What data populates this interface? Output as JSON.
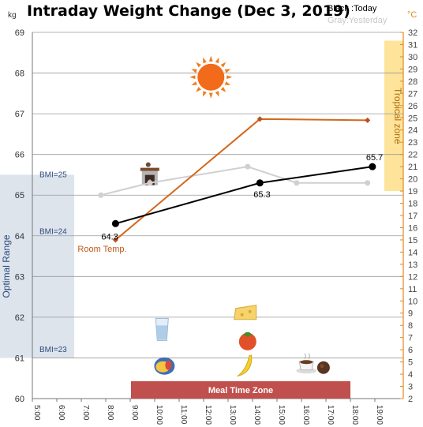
{
  "chart_data": {
    "type": "line",
    "title": "Intraday Weight Change (Dec 3, 2019)",
    "legend": {
      "today": "Black :Today",
      "yesterday": "Gray:Yesterday"
    },
    "y_left": {
      "unit": "kg",
      "range": [
        60,
        69
      ],
      "ticks": [
        60,
        61,
        62,
        63,
        64,
        65,
        66,
        67,
        68,
        69
      ]
    },
    "y_right": {
      "unit": "°C",
      "range": [
        2,
        32
      ],
      "ticks": [
        2,
        3,
        4,
        5,
        6,
        7,
        8,
        9,
        10,
        11,
        12,
        13,
        14,
        15,
        16,
        17,
        18,
        19,
        20,
        21,
        22,
        23,
        24,
        25,
        26,
        27,
        28,
        29,
        30,
        31,
        32
      ]
    },
    "x_ticks": [
      "5:00",
      "6:00",
      "7:00",
      "8:00",
      "9:00",
      "10:00",
      "11:00",
      "12:00",
      "13:00",
      "14:00",
      "15:00",
      "16:00",
      "17:00",
      "18:00",
      "19:00"
    ],
    "series": [
      {
        "name": "Today",
        "color": "#000000",
        "x": [
          8.4,
          14.3,
          18.9
        ],
        "y": [
          64.3,
          65.3,
          65.7
        ],
        "labels": [
          "64.3",
          "65.3",
          "65.7"
        ]
      },
      {
        "name": "Yesterday",
        "color": "#d0d0d0",
        "x": [
          7.8,
          9.8,
          13.8,
          15.8,
          18.7
        ],
        "y": [
          65.0,
          65.3,
          65.7,
          65.3,
          65.3
        ]
      },
      {
        "name": "Room Temp.",
        "color": "#d2691e",
        "axis": "right",
        "x": [
          8.4,
          14.3,
          18.7
        ],
        "y": [
          15.0,
          24.9,
          24.8
        ]
      }
    ],
    "bands": {
      "optimal": {
        "label": "Optimal Range",
        "kg_range": [
          61,
          65.5
        ],
        "color": "#dde4ec"
      },
      "tropical": {
        "label": "Tropical zone",
        "celsius_range": [
          19,
          31
        ],
        "color": "#fde49a"
      },
      "meal": {
        "label": "Meal Time Zone",
        "time_range": [
          9,
          19
        ],
        "color": "#c0504d"
      }
    },
    "bmi_markers": [
      {
        "label": "BMI=25",
        "kg": 65.5
      },
      {
        "label": "BMI=24",
        "kg": 64.1
      },
      {
        "label": "BMI=23",
        "kg": 61.2
      }
    ],
    "annotations": {
      "room_temp": "Room Temp."
    },
    "icons": [
      {
        "name": "sun-icon",
        "time": 12.3,
        "kg": 67.9
      },
      {
        "name": "fireplace-icon",
        "time": 9.8,
        "kg": 65.4
      },
      {
        "name": "glass-water-icon",
        "time": 10.3,
        "kg": 61.7
      },
      {
        "name": "fried-egg-icon",
        "time": 10.4,
        "kg": 60.8
      },
      {
        "name": "cheese-icon",
        "time": 13.7,
        "kg": 62.1
      },
      {
        "name": "tomato-icon",
        "time": 13.8,
        "kg": 61.4
      },
      {
        "name": "banana-icon",
        "time": 13.7,
        "kg": 60.8
      },
      {
        "name": "coffee-icon",
        "time": 16.2,
        "kg": 60.8
      },
      {
        "name": "chocolate-icon",
        "time": 16.9,
        "kg": 60.8
      }
    ],
    "grid": true
  }
}
